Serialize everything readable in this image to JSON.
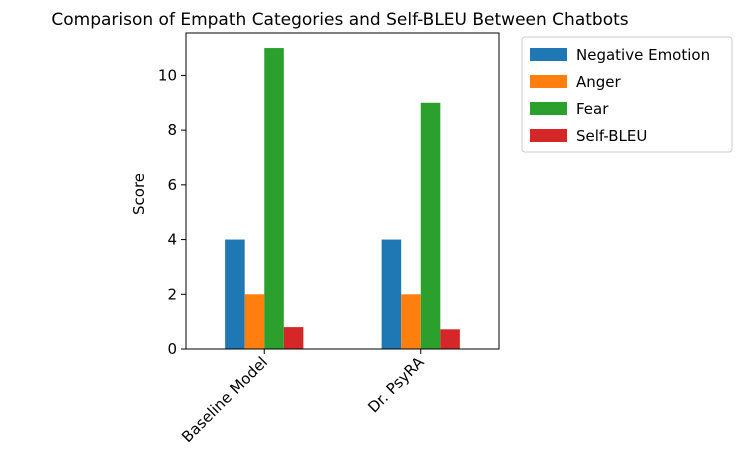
{
  "chart_data": {
    "type": "bar",
    "title": "Comparison of Empath Categories and Self-BLEU Between Chatbots",
    "xlabel": "",
    "ylabel": "Score",
    "categories": [
      "Baseline Model",
      "Dr. PsyRA"
    ],
    "series": [
      {
        "name": "Negative Emotion",
        "color": "#1f77b4",
        "values": [
          4,
          4
        ]
      },
      {
        "name": "Anger",
        "color": "#ff7f0e",
        "values": [
          2,
          2
        ]
      },
      {
        "name": "Fear",
        "color": "#2ca02c",
        "values": [
          11,
          9
        ]
      },
      {
        "name": "Self-BLEU",
        "color": "#d62728",
        "values": [
          0.8,
          0.72
        ]
      }
    ],
    "ylim": [
      0,
      11.55
    ],
    "yticks": [
      "0",
      "2",
      "4",
      "6",
      "8",
      "10"
    ],
    "grid": false,
    "legend_position": "outside-top-right",
    "xtick_rotation": 45
  }
}
